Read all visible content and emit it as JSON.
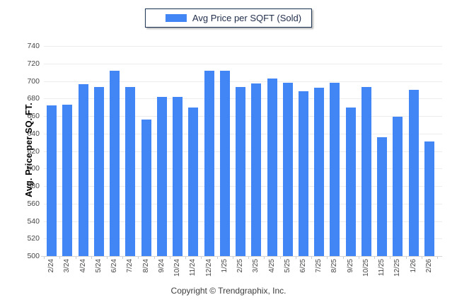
{
  "legend": {
    "label": "Avg Price per SQFT (Sold)",
    "swatch_color": "#4285F4"
  },
  "y_axis": {
    "title": "Avg. Price per SQ. FT.",
    "min": 500,
    "max": 740,
    "step": 20
  },
  "footer": {
    "copyright": "Copyright © Trendgraphix, Inc."
  },
  "colors": {
    "bar": "#4285F4",
    "grid": "#ececec",
    "legend_border": "#17304f"
  },
  "chart_data": {
    "type": "bar",
    "title": "Avg Price per SQFT (Sold)",
    "categories": [
      "2/24",
      "3/24",
      "4/24",
      "5/24",
      "6/24",
      "7/24",
      "8/24",
      "9/24",
      "10/24",
      "11/24",
      "12/24",
      "1/25",
      "2/25",
      "3/25",
      "4/25",
      "5/25",
      "6/25",
      "7/25",
      "8/25",
      "9/25",
      "10/25",
      "11/25",
      "12/25",
      "1/26",
      "2/26"
    ],
    "values": [
      672,
      673,
      696,
      693,
      712,
      693,
      656,
      682,
      682,
      670,
      712,
      712,
      693,
      697,
      703,
      698,
      688,
      692,
      698,
      670,
      693,
      636,
      659,
      690,
      631
    ],
    "xlabel": "",
    "ylabel": "Avg. Price per SQ. FT.",
    "ylim": [
      500,
      740
    ],
    "ytick_step": 20,
    "grid": true,
    "legend_position": "top-center",
    "bar_color": "#4285F4"
  }
}
